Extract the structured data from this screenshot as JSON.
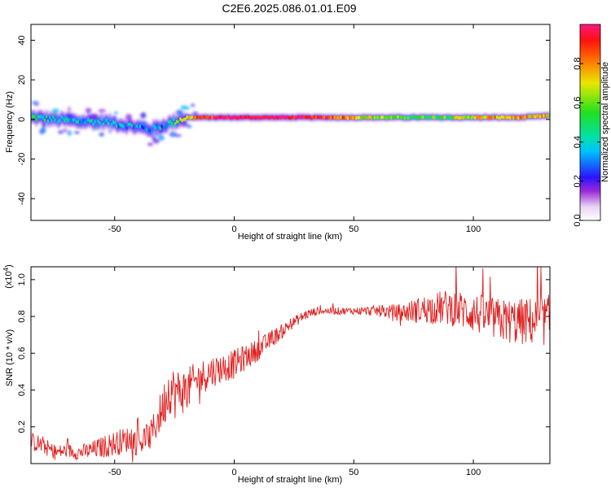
{
  "figure_title": "C2E6.2025.086.01.01.E09",
  "chart_data": [
    {
      "type": "heatmap",
      "xlabel": "Height of straight line (km)",
      "ylabel": "Frequency (Hz)",
      "xlim": [
        -85,
        132
      ],
      "ylim": [
        -51,
        48
      ],
      "xticks": [
        -50,
        0,
        50,
        100
      ],
      "yticks": [
        -40,
        -20,
        0,
        20,
        40
      ],
      "xtick_labels": [
        "-50",
        "0",
        "50",
        "100"
      ],
      "ytick_labels": [
        "-40",
        "-20",
        "0",
        "20",
        "40"
      ],
      "colorbar": {
        "label": "Normalized spectral amplitude",
        "range": [
          0,
          1
        ],
        "ticks": [
          0.0,
          0.2,
          0.4,
          0.6,
          0.8
        ],
        "tick_labels": [
          "0.0",
          "0.2",
          "0.4",
          "0.6",
          "0.8"
        ],
        "colormap": "rainbow (white-purple-blue-cyan-green-yellow-red-pink)"
      },
      "ridge": {
        "x": [
          -85,
          -75,
          -65,
          -55,
          -45,
          -40,
          -35,
          -30,
          -25,
          -20,
          -15,
          -10,
          -5,
          0,
          10,
          20,
          30,
          40,
          50,
          60,
          70,
          80,
          90,
          100,
          110,
          120,
          132
        ],
        "freq": [
          1,
          0,
          -1,
          -1,
          -3,
          -4,
          -5,
          -3,
          -1,
          1,
          1,
          1,
          1,
          1,
          1,
          1,
          1,
          1,
          1,
          1,
          1,
          1,
          1,
          1,
          1,
          1,
          2
        ],
        "amplitude": [
          0.45,
          0.4,
          0.4,
          0.35,
          0.3,
          0.3,
          0.3,
          0.35,
          0.5,
          0.7,
          0.9,
          0.9,
          0.95,
          1.0,
          1.0,
          1.0,
          0.95,
          0.9,
          0.75,
          0.6,
          0.55,
          0.55,
          0.6,
          0.7,
          0.75,
          0.75,
          0.7
        ]
      }
    },
    {
      "type": "line",
      "xlabel": "Height of straight line (km)",
      "ylabel": "SNR (10 * v/v)",
      "yscale_label": "(x10",
      "yscale_exp": "4",
      "xlim": [
        -85,
        132
      ],
      "ylim": [
        0.0,
        1.07
      ],
      "xticks": [
        -50,
        0,
        50,
        100
      ],
      "yticks": [
        0.2,
        0.4,
        0.6,
        0.8,
        1.0
      ],
      "xtick_labels": [
        "-50",
        "0",
        "50",
        "100"
      ],
      "ytick_labels": [
        "0.2",
        "0.4",
        "0.6",
        "0.8",
        "1.0"
      ],
      "color": "#e02020",
      "series": [
        {
          "x": [
            -85,
            -80,
            -75,
            -70,
            -65,
            -60,
            -55,
            -50,
            -45,
            -40,
            -35,
            -30,
            -27,
            -25,
            -20,
            -15,
            -10,
            -5,
            0,
            5,
            10,
            15,
            20,
            25,
            30,
            35,
            40,
            50,
            60,
            70,
            80,
            90,
            100,
            110,
            120,
            132
          ],
          "y": [
            0.12,
            0.1,
            0.06,
            0.07,
            0.06,
            0.07,
            0.09,
            0.11,
            0.13,
            0.12,
            0.15,
            0.3,
            0.42,
            0.38,
            0.4,
            0.46,
            0.5,
            0.52,
            0.54,
            0.58,
            0.62,
            0.67,
            0.72,
            0.77,
            0.81,
            0.83,
            0.83,
            0.83,
            0.83,
            0.82,
            0.84,
            0.85,
            0.82,
            0.78,
            0.77,
            0.78
          ],
          "noise": [
            0.05,
            0.05,
            0.04,
            0.04,
            0.04,
            0.05,
            0.06,
            0.07,
            0.07,
            0.08,
            0.08,
            0.12,
            0.15,
            0.14,
            0.12,
            0.1,
            0.09,
            0.08,
            0.08,
            0.07,
            0.06,
            0.05,
            0.04,
            0.03,
            0.03,
            0.02,
            0.02,
            0.02,
            0.03,
            0.05,
            0.08,
            0.1,
            0.11,
            0.12,
            0.13,
            0.14
          ]
        }
      ]
    }
  ]
}
